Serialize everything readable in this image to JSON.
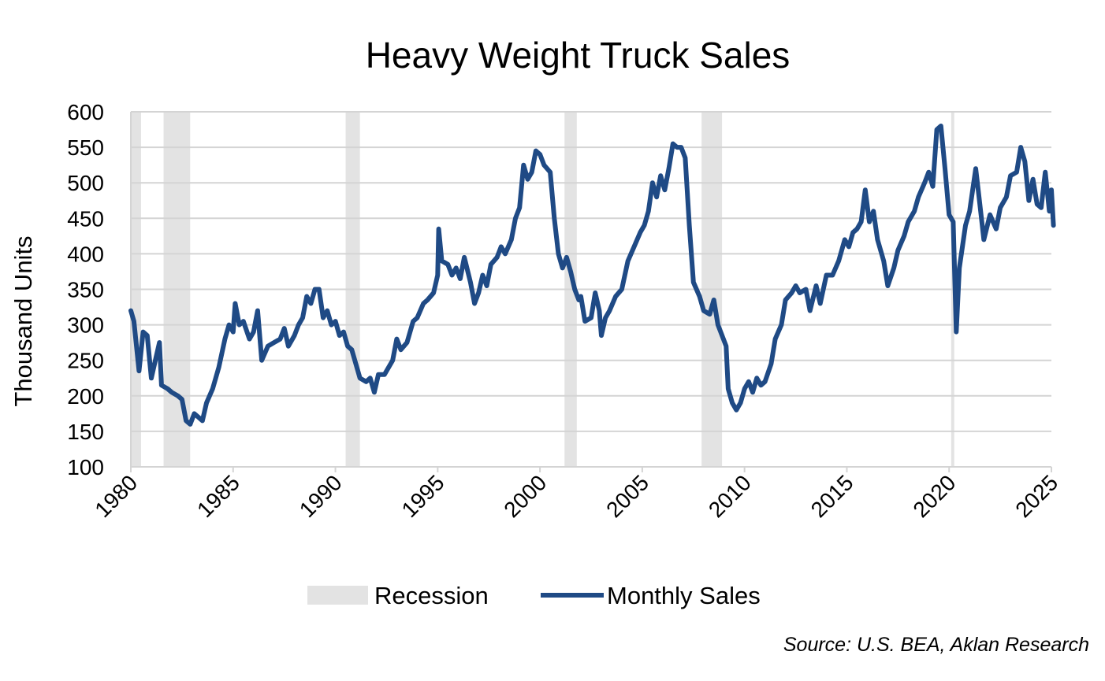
{
  "chart_data": {
    "type": "line",
    "title": "Heavy Weight Truck Sales",
    "ylabel": "Thousand Units",
    "xlabel": "",
    "xlim": [
      1980,
      2025.1
    ],
    "ylim": [
      100,
      600
    ],
    "yticks": [
      100,
      150,
      200,
      250,
      300,
      350,
      400,
      450,
      500,
      550,
      600
    ],
    "xticks": [
      1980,
      1985,
      1990,
      1995,
      2000,
      2005,
      2010,
      2015,
      2020,
      2025
    ],
    "grid": "horizontal",
    "legend_placement": "bottom",
    "legend": [
      "Recession",
      "Monthly Sales"
    ],
    "source": "Source: U.S. BEA, Aklan Research",
    "colors": {
      "line": "#1f4a85",
      "recession": "#e3e3e3",
      "grid": "#d4d4d4"
    },
    "recessions": [
      [
        1980.0,
        1980.5
      ],
      [
        1981.6,
        1982.9
      ],
      [
        1990.5,
        1991.2
      ],
      [
        2001.2,
        2001.8
      ],
      [
        2007.9,
        2008.9
      ],
      [
        2020.1,
        2020.25
      ]
    ],
    "series": [
      {
        "name": "Monthly Sales",
        "points": [
          [
            1980.0,
            320
          ],
          [
            1980.15,
            305
          ],
          [
            1980.4,
            235
          ],
          [
            1980.6,
            290
          ],
          [
            1980.8,
            285
          ],
          [
            1981.0,
            225
          ],
          [
            1981.2,
            250
          ],
          [
            1981.4,
            275
          ],
          [
            1981.5,
            215
          ],
          [
            1981.8,
            210
          ],
          [
            1982.0,
            205
          ],
          [
            1982.3,
            200
          ],
          [
            1982.5,
            195
          ],
          [
            1982.7,
            165
          ],
          [
            1982.9,
            160
          ],
          [
            1983.1,
            175
          ],
          [
            1983.3,
            170
          ],
          [
            1983.5,
            165
          ],
          [
            1983.7,
            190
          ],
          [
            1984.0,
            210
          ],
          [
            1984.3,
            240
          ],
          [
            1984.6,
            280
          ],
          [
            1984.8,
            300
          ],
          [
            1985.0,
            290
          ],
          [
            1985.1,
            330
          ],
          [
            1985.3,
            300
          ],
          [
            1985.5,
            305
          ],
          [
            1985.8,
            280
          ],
          [
            1986.0,
            290
          ],
          [
            1986.2,
            320
          ],
          [
            1986.4,
            250
          ],
          [
            1986.7,
            270
          ],
          [
            1987.0,
            275
          ],
          [
            1987.3,
            280
          ],
          [
            1987.5,
            295
          ],
          [
            1987.7,
            270
          ],
          [
            1988.0,
            285
          ],
          [
            1988.2,
            300
          ],
          [
            1988.4,
            310
          ],
          [
            1988.6,
            340
          ],
          [
            1988.8,
            330
          ],
          [
            1989.0,
            350
          ],
          [
            1989.2,
            350
          ],
          [
            1989.4,
            310
          ],
          [
            1989.6,
            320
          ],
          [
            1989.8,
            300
          ],
          [
            1990.0,
            305
          ],
          [
            1990.2,
            285
          ],
          [
            1990.4,
            290
          ],
          [
            1990.6,
            270
          ],
          [
            1990.8,
            265
          ],
          [
            1991.0,
            245
          ],
          [
            1991.2,
            225
          ],
          [
            1991.5,
            220
          ],
          [
            1991.7,
            225
          ],
          [
            1991.9,
            205
          ],
          [
            1992.1,
            230
          ],
          [
            1992.4,
            230
          ],
          [
            1992.6,
            240
          ],
          [
            1992.8,
            250
          ],
          [
            1993.0,
            280
          ],
          [
            1993.2,
            265
          ],
          [
            1993.5,
            275
          ],
          [
            1993.8,
            305
          ],
          [
            1994.0,
            310
          ],
          [
            1994.3,
            330
          ],
          [
            1994.5,
            335
          ],
          [
            1994.8,
            345
          ],
          [
            1995.0,
            370
          ],
          [
            1995.05,
            435
          ],
          [
            1995.2,
            390
          ],
          [
            1995.5,
            385
          ],
          [
            1995.7,
            370
          ],
          [
            1995.9,
            380
          ],
          [
            1996.1,
            365
          ],
          [
            1996.3,
            395
          ],
          [
            1996.6,
            360
          ],
          [
            1996.8,
            330
          ],
          [
            1997.0,
            345
          ],
          [
            1997.2,
            370
          ],
          [
            1997.4,
            355
          ],
          [
            1997.6,
            385
          ],
          [
            1997.9,
            395
          ],
          [
            1998.1,
            410
          ],
          [
            1998.3,
            400
          ],
          [
            1998.6,
            420
          ],
          [
            1998.8,
            450
          ],
          [
            1999.0,
            465
          ],
          [
            1999.2,
            525
          ],
          [
            1999.4,
            505
          ],
          [
            1999.6,
            515
          ],
          [
            1999.8,
            545
          ],
          [
            2000.0,
            540
          ],
          [
            2000.2,
            525
          ],
          [
            2000.5,
            515
          ],
          [
            2000.7,
            450
          ],
          [
            2000.9,
            400
          ],
          [
            2001.1,
            380
          ],
          [
            2001.3,
            395
          ],
          [
            2001.5,
            375
          ],
          [
            2001.7,
            350
          ],
          [
            2001.9,
            335
          ],
          [
            2002.0,
            340
          ],
          [
            2002.2,
            305
          ],
          [
            2002.5,
            310
          ],
          [
            2002.7,
            345
          ],
          [
            2002.9,
            320
          ],
          [
            2003.0,
            285
          ],
          [
            2003.2,
            310
          ],
          [
            2003.4,
            320
          ],
          [
            2003.7,
            340
          ],
          [
            2004.0,
            350
          ],
          [
            2004.3,
            390
          ],
          [
            2004.6,
            410
          ],
          [
            2004.9,
            430
          ],
          [
            2005.1,
            440
          ],
          [
            2005.3,
            460
          ],
          [
            2005.5,
            500
          ],
          [
            2005.7,
            480
          ],
          [
            2005.9,
            510
          ],
          [
            2006.1,
            490
          ],
          [
            2006.3,
            520
          ],
          [
            2006.5,
            555
          ],
          [
            2006.7,
            550
          ],
          [
            2006.9,
            550
          ],
          [
            2007.1,
            535
          ],
          [
            2007.3,
            440
          ],
          [
            2007.5,
            360
          ],
          [
            2007.8,
            340
          ],
          [
            2008.0,
            320
          ],
          [
            2008.3,
            315
          ],
          [
            2008.5,
            335
          ],
          [
            2008.7,
            300
          ],
          [
            2008.9,
            285
          ],
          [
            2009.1,
            270
          ],
          [
            2009.2,
            210
          ],
          [
            2009.4,
            190
          ],
          [
            2009.6,
            180
          ],
          [
            2009.8,
            190
          ],
          [
            2010.0,
            210
          ],
          [
            2010.2,
            220
          ],
          [
            2010.4,
            205
          ],
          [
            2010.6,
            225
          ],
          [
            2010.8,
            215
          ],
          [
            2011.0,
            220
          ],
          [
            2011.3,
            245
          ],
          [
            2011.5,
            280
          ],
          [
            2011.8,
            300
          ],
          [
            2012.0,
            335
          ],
          [
            2012.3,
            345
          ],
          [
            2012.5,
            355
          ],
          [
            2012.7,
            345
          ],
          [
            2013.0,
            350
          ],
          [
            2013.2,
            320
          ],
          [
            2013.5,
            355
          ],
          [
            2013.7,
            330
          ],
          [
            2014.0,
            370
          ],
          [
            2014.3,
            370
          ],
          [
            2014.6,
            390
          ],
          [
            2014.9,
            420
          ],
          [
            2015.1,
            410
          ],
          [
            2015.3,
            430
          ],
          [
            2015.5,
            435
          ],
          [
            2015.7,
            445
          ],
          [
            2015.9,
            490
          ],
          [
            2016.1,
            445
          ],
          [
            2016.3,
            460
          ],
          [
            2016.5,
            420
          ],
          [
            2016.8,
            390
          ],
          [
            2017.0,
            355
          ],
          [
            2017.3,
            380
          ],
          [
            2017.5,
            405
          ],
          [
            2017.8,
            425
          ],
          [
            2018.0,
            445
          ],
          [
            2018.3,
            460
          ],
          [
            2018.5,
            480
          ],
          [
            2018.8,
            500
          ],
          [
            2019.0,
            515
          ],
          [
            2019.2,
            495
          ],
          [
            2019.4,
            575
          ],
          [
            2019.6,
            580
          ],
          [
            2019.8,
            520
          ],
          [
            2020.0,
            455
          ],
          [
            2020.2,
            445
          ],
          [
            2020.35,
            290
          ],
          [
            2020.5,
            380
          ],
          [
            2020.8,
            440
          ],
          [
            2021.0,
            460
          ],
          [
            2021.3,
            520
          ],
          [
            2021.5,
            470
          ],
          [
            2021.7,
            420
          ],
          [
            2022.0,
            455
          ],
          [
            2022.3,
            435
          ],
          [
            2022.5,
            465
          ],
          [
            2022.8,
            480
          ],
          [
            2023.0,
            510
          ],
          [
            2023.3,
            515
          ],
          [
            2023.5,
            550
          ],
          [
            2023.7,
            530
          ],
          [
            2023.9,
            475
          ],
          [
            2024.1,
            505
          ],
          [
            2024.3,
            470
          ],
          [
            2024.5,
            465
          ],
          [
            2024.7,
            515
          ],
          [
            2024.9,
            460
          ],
          [
            2025.0,
            490
          ],
          [
            2025.1,
            440
          ]
        ]
      }
    ]
  }
}
